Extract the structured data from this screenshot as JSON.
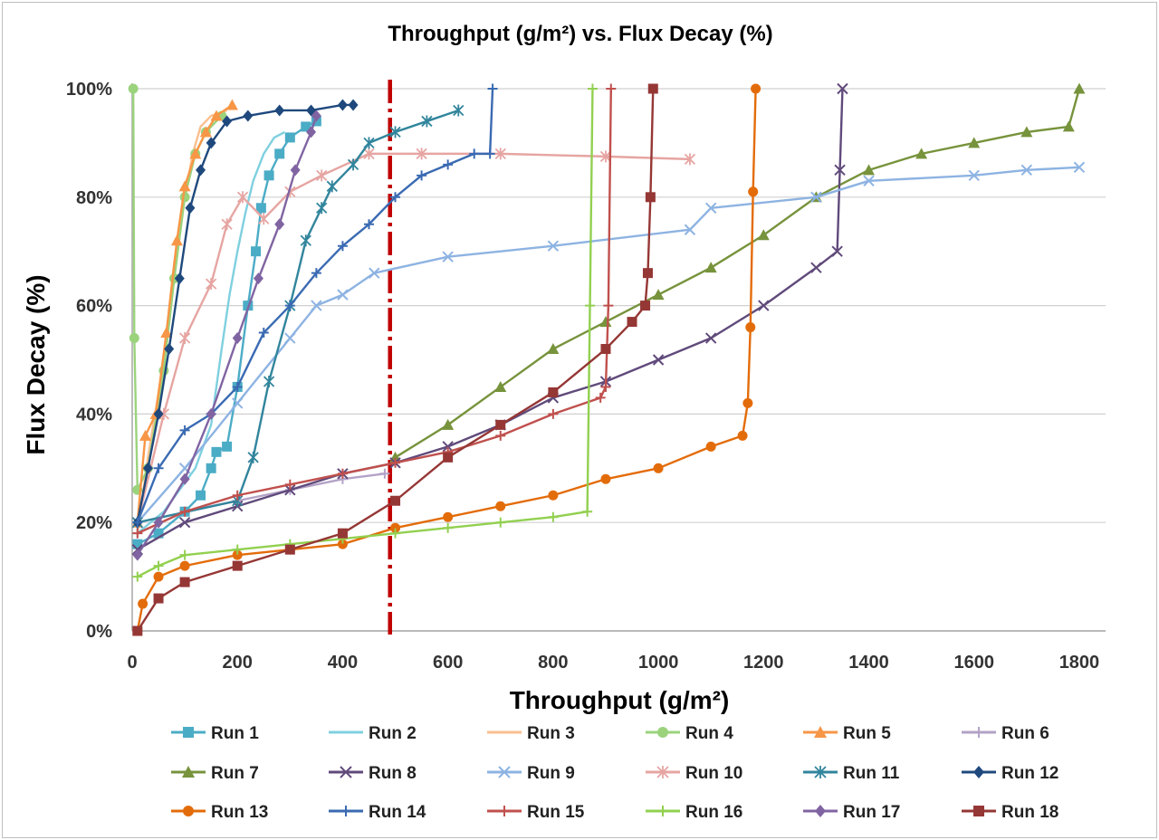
{
  "chart_data": {
    "type": "line",
    "title": "Throughput (g/m²) vs. Flux Decay (%)",
    "xlabel": "Throughput (g/m²)",
    "ylabel": "Flux Decay (%)",
    "xlim": [
      0,
      1850
    ],
    "ylim": [
      0,
      100
    ],
    "x_ticks": [
      0,
      200,
      400,
      600,
      800,
      1000,
      1200,
      1400,
      1600,
      1800
    ],
    "y_ticks": [
      0,
      20,
      40,
      60,
      80,
      100
    ],
    "x_tick_labels": [
      "0",
      "200",
      "400",
      "600",
      "800",
      "1000",
      "1200",
      "1400",
      "1600",
      "1800"
    ],
    "y_tick_labels": [
      "0%",
      "20%",
      "40%",
      "60%",
      "80%",
      "100%"
    ],
    "grid": "horizontal",
    "legend_position": "bottom",
    "reference_line": {
      "x": 490,
      "style": "dash-dot",
      "color": "#c00000"
    },
    "series": [
      {
        "name": "Run 1",
        "color": "#4bacc6",
        "marker": "square",
        "points": [
          [
            10,
            16
          ],
          [
            50,
            18
          ],
          [
            100,
            22
          ],
          [
            130,
            25
          ],
          [
            150,
            30
          ],
          [
            160,
            33
          ],
          [
            180,
            34
          ],
          [
            200,
            45
          ],
          [
            220,
            60
          ],
          [
            235,
            70
          ],
          [
            245,
            78
          ],
          [
            260,
            84
          ],
          [
            280,
            88
          ],
          [
            300,
            91
          ],
          [
            330,
            93
          ],
          [
            350,
            94
          ]
        ]
      },
      {
        "name": "Run 2",
        "color": "#7fd0df",
        "marker": "none",
        "points": [
          [
            10,
            18
          ],
          [
            60,
            22
          ],
          [
            120,
            30
          ],
          [
            150,
            38
          ],
          [
            170,
            52
          ],
          [
            185,
            62
          ],
          [
            200,
            70
          ],
          [
            215,
            77
          ],
          [
            230,
            83
          ],
          [
            250,
            88
          ],
          [
            270,
            91
          ],
          [
            290,
            92
          ]
        ]
      },
      {
        "name": "Run 3",
        "color": "#fabf8f",
        "marker": "none",
        "points": [
          [
            10,
            18
          ],
          [
            30,
            32
          ],
          [
            60,
            50
          ],
          [
            80,
            68
          ],
          [
            100,
            80
          ],
          [
            115,
            88
          ],
          [
            130,
            93
          ],
          [
            150,
            95
          ],
          [
            180,
            96
          ]
        ]
      },
      {
        "name": "Run 4",
        "color": "#9bd37d",
        "marker": "circle",
        "points": [
          [
            2,
            100
          ],
          [
            4,
            54
          ],
          [
            10,
            26
          ],
          [
            30,
            30
          ],
          [
            60,
            48
          ],
          [
            80,
            65
          ],
          [
            100,
            80
          ],
          [
            120,
            88
          ],
          [
            140,
            92
          ],
          [
            170,
            95
          ]
        ]
      },
      {
        "name": "Run 5",
        "color": "#f79646",
        "marker": "triangle",
        "points": [
          [
            10,
            20
          ],
          [
            25,
            36
          ],
          [
            45,
            40
          ],
          [
            65,
            55
          ],
          [
            85,
            72
          ],
          [
            100,
            82
          ],
          [
            120,
            88
          ],
          [
            140,
            92
          ],
          [
            160,
            95
          ],
          [
            190,
            97
          ]
        ]
      },
      {
        "name": "Run 6",
        "color": "#b3a2c7",
        "marker": "plus",
        "points": [
          [
            10,
            18
          ],
          [
            100,
            22
          ],
          [
            200,
            24
          ],
          [
            300,
            26
          ],
          [
            400,
            28
          ],
          [
            480,
            29
          ]
        ]
      },
      {
        "name": "Run 7",
        "color": "#77933c",
        "marker": "triangle",
        "points": [
          [
            500,
            32
          ],
          [
            600,
            38
          ],
          [
            700,
            45
          ],
          [
            800,
            52
          ],
          [
            900,
            57
          ],
          [
            1000,
            62
          ],
          [
            1100,
            67
          ],
          [
            1200,
            73
          ],
          [
            1300,
            80
          ],
          [
            1400,
            85
          ],
          [
            1500,
            88
          ],
          [
            1600,
            90
          ],
          [
            1700,
            92
          ],
          [
            1780,
            93
          ],
          [
            1800,
            100
          ]
        ]
      },
      {
        "name": "Run 8",
        "color": "#604a7b",
        "marker": "x",
        "points": [
          [
            10,
            15
          ],
          [
            100,
            20
          ],
          [
            200,
            23
          ],
          [
            300,
            26
          ],
          [
            400,
            29
          ],
          [
            500,
            31
          ],
          [
            600,
            34
          ],
          [
            700,
            38
          ],
          [
            800,
            43
          ],
          [
            900,
            46
          ],
          [
            1000,
            50
          ],
          [
            1100,
            54
          ],
          [
            1200,
            60
          ],
          [
            1300,
            67
          ],
          [
            1340,
            70
          ],
          [
            1345,
            85
          ],
          [
            1350,
            100
          ]
        ]
      },
      {
        "name": "Run 9",
        "color": "#8db3e2",
        "marker": "x",
        "points": [
          [
            10,
            20
          ],
          [
            100,
            30
          ],
          [
            200,
            42
          ],
          [
            300,
            54
          ],
          [
            350,
            60
          ],
          [
            400,
            62
          ],
          [
            460,
            66
          ],
          [
            600,
            69
          ],
          [
            800,
            71
          ],
          [
            1060,
            74
          ],
          [
            1100,
            78
          ],
          [
            1300,
            80
          ],
          [
            1400,
            83
          ],
          [
            1600,
            84
          ],
          [
            1700,
            85
          ],
          [
            1800,
            85.5
          ]
        ]
      },
      {
        "name": "Run 10",
        "color": "#e6a5a2",
        "marker": "asterisk",
        "points": [
          [
            10,
            20
          ],
          [
            60,
            40
          ],
          [
            100,
            54
          ],
          [
            150,
            64
          ],
          [
            180,
            75
          ],
          [
            210,
            80
          ],
          [
            250,
            76
          ],
          [
            300,
            81
          ],
          [
            360,
            84
          ],
          [
            450,
            88
          ],
          [
            550,
            88
          ],
          [
            700,
            88
          ],
          [
            900,
            87.5
          ],
          [
            1060,
            87
          ]
        ]
      },
      {
        "name": "Run 11",
        "color": "#31859c",
        "marker": "asterisk",
        "points": [
          [
            10,
            20
          ],
          [
            200,
            24
          ],
          [
            230,
            32
          ],
          [
            260,
            46
          ],
          [
            300,
            60
          ],
          [
            330,
            72
          ],
          [
            360,
            78
          ],
          [
            380,
            82
          ],
          [
            420,
            86
          ],
          [
            450,
            90
          ],
          [
            500,
            92
          ],
          [
            560,
            94
          ],
          [
            620,
            96
          ]
        ]
      },
      {
        "name": "Run 12",
        "color": "#1f497d",
        "marker": "diamond",
        "points": [
          [
            10,
            20
          ],
          [
            30,
            30
          ],
          [
            50,
            40
          ],
          [
            70,
            52
          ],
          [
            90,
            65
          ],
          [
            110,
            78
          ],
          [
            130,
            85
          ],
          [
            150,
            90
          ],
          [
            180,
            94
          ],
          [
            220,
            95
          ],
          [
            280,
            96
          ],
          [
            340,
            96
          ],
          [
            400,
            97
          ],
          [
            420,
            97
          ]
        ]
      },
      {
        "name": "Run 13",
        "color": "#e36c0a",
        "marker": "circle",
        "points": [
          [
            10,
            0
          ],
          [
            20,
            5
          ],
          [
            50,
            10
          ],
          [
            100,
            12
          ],
          [
            200,
            14
          ],
          [
            300,
            15
          ],
          [
            400,
            16
          ],
          [
            500,
            19
          ],
          [
            600,
            21
          ],
          [
            700,
            23
          ],
          [
            800,
            25
          ],
          [
            900,
            28
          ],
          [
            1000,
            30
          ],
          [
            1100,
            34
          ],
          [
            1160,
            36
          ],
          [
            1170,
            42
          ],
          [
            1175,
            56
          ],
          [
            1180,
            81
          ],
          [
            1185,
            100
          ]
        ]
      },
      {
        "name": "Run 14",
        "color": "#3a6ab2",
        "marker": "plus",
        "points": [
          [
            10,
            20
          ],
          [
            50,
            30
          ],
          [
            100,
            37
          ],
          [
            150,
            40
          ],
          [
            200,
            45
          ],
          [
            250,
            55
          ],
          [
            300,
            60
          ],
          [
            350,
            66
          ],
          [
            400,
            71
          ],
          [
            450,
            75
          ],
          [
            500,
            80
          ],
          [
            550,
            84
          ],
          [
            600,
            86
          ],
          [
            650,
            88
          ],
          [
            680,
            88
          ],
          [
            685,
            100
          ]
        ]
      },
      {
        "name": "Run 15",
        "color": "#c0504d",
        "marker": "plus",
        "points": [
          [
            10,
            18
          ],
          [
            100,
            22
          ],
          [
            200,
            25
          ],
          [
            300,
            27
          ],
          [
            400,
            29
          ],
          [
            500,
            31
          ],
          [
            600,
            33
          ],
          [
            700,
            36
          ],
          [
            800,
            40
          ],
          [
            890,
            43
          ],
          [
            900,
            45
          ],
          [
            905,
            60
          ],
          [
            910,
            100
          ]
        ]
      },
      {
        "name": "Run 16",
        "color": "#92d050",
        "marker": "plus",
        "points": [
          [
            10,
            10
          ],
          [
            50,
            12
          ],
          [
            100,
            14
          ],
          [
            200,
            15
          ],
          [
            300,
            16
          ],
          [
            400,
            17
          ],
          [
            500,
            18
          ],
          [
            600,
            19
          ],
          [
            700,
            20
          ],
          [
            800,
            21
          ],
          [
            865,
            22
          ],
          [
            870,
            60
          ],
          [
            875,
            100
          ]
        ]
      },
      {
        "name": "Run 17",
        "color": "#8064a2",
        "marker": "diamond",
        "points": [
          [
            10,
            14
          ],
          [
            50,
            20
          ],
          [
            100,
            28
          ],
          [
            150,
            40
          ],
          [
            200,
            54
          ],
          [
            240,
            65
          ],
          [
            280,
            75
          ],
          [
            310,
            85
          ],
          [
            340,
            92
          ],
          [
            350,
            95
          ]
        ]
      },
      {
        "name": "Run 18",
        "color": "#953735",
        "marker": "square",
        "points": [
          [
            10,
            0
          ],
          [
            50,
            6
          ],
          [
            100,
            9
          ],
          [
            200,
            12
          ],
          [
            300,
            15
          ],
          [
            400,
            18
          ],
          [
            500,
            24
          ],
          [
            600,
            32
          ],
          [
            700,
            38
          ],
          [
            800,
            44
          ],
          [
            900,
            52
          ],
          [
            950,
            57
          ],
          [
            975,
            60
          ],
          [
            980,
            66
          ],
          [
            985,
            80
          ],
          [
            990,
            100
          ]
        ]
      }
    ]
  }
}
